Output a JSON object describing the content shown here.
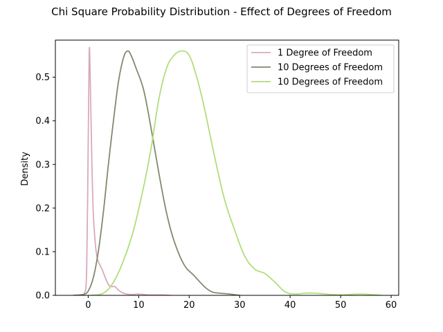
{
  "chart_data": {
    "type": "line",
    "title": "Chi Square Probability Distribution - Effect of Degrees of Freedom",
    "xlabel": "",
    "ylabel": "Density",
    "xlim": [
      -6.5,
      61.5
    ],
    "ylim": [
      0,
      0.585
    ],
    "xticks": [
      0,
      10,
      20,
      30,
      40,
      50,
      60
    ],
    "yticks": [
      0.0,
      0.1,
      0.2,
      0.3,
      0.4,
      0.5
    ],
    "xtick_labels": [
      "0",
      "10",
      "20",
      "30",
      "40",
      "50",
      "60"
    ],
    "ytick_labels": [
      "0.0",
      "0.1",
      "0.2",
      "0.3",
      "0.4",
      "0.5"
    ],
    "grid": false,
    "legend_position": "top-right",
    "series": [
      {
        "name": "1 Degree of Freedom",
        "color": "#d8a9bd",
        "x": [
          -1.5,
          -0.8,
          -0.3,
          0.0,
          0.2,
          0.4,
          0.7,
          1.0,
          1.4,
          1.8,
          2.3,
          2.8,
          3.4,
          4.0,
          4.6,
          5.3,
          6.0,
          7.0,
          8.5,
          10.0,
          12.0,
          14.0,
          16.5
        ],
        "y": [
          0.0,
          0.003,
          0.06,
          0.35,
          0.56,
          0.5,
          0.32,
          0.19,
          0.12,
          0.085,
          0.07,
          0.058,
          0.04,
          0.025,
          0.02,
          0.02,
          0.012,
          0.005,
          0.002,
          0.003,
          0.001,
          0.001,
          0.0
        ]
      },
      {
        "name": "10 Degrees of Freedom",
        "color": "#7e8a6c",
        "x": [
          -3.0,
          -1.0,
          0.0,
          1.0,
          2.0,
          3.0,
          4.0,
          5.0,
          6.0,
          7.0,
          7.8,
          8.5,
          9.5,
          11.0,
          12.5,
          14.0,
          15.5,
          17.0,
          19.0,
          21.0,
          23.0,
          24.5,
          26.0,
          28.0,
          30.0
        ],
        "y": [
          0.0,
          0.002,
          0.01,
          0.04,
          0.1,
          0.19,
          0.3,
          0.4,
          0.49,
          0.545,
          0.56,
          0.55,
          0.52,
          0.47,
          0.38,
          0.28,
          0.19,
          0.125,
          0.07,
          0.045,
          0.02,
          0.008,
          0.005,
          0.003,
          0.0
        ]
      },
      {
        "name": "10 Degrees of Freedom",
        "color": "#b1dd7a",
        "x": [
          0.5,
          3.0,
          5.0,
          7.0,
          9.0,
          11.0,
          12.5,
          14.0,
          15.5,
          17.0,
          18.5,
          20.0,
          21.5,
          23.0,
          25.0,
          27.0,
          29.0,
          31.0,
          33.0,
          35.0,
          37.0,
          39.0,
          41.0,
          43.0,
          45.0,
          47.0,
          50.0,
          54.0,
          58.0
        ],
        "y": [
          0.0,
          0.005,
          0.03,
          0.08,
          0.15,
          0.25,
          0.34,
          0.45,
          0.52,
          0.55,
          0.56,
          0.55,
          0.5,
          0.43,
          0.32,
          0.22,
          0.15,
          0.09,
          0.06,
          0.05,
          0.03,
          0.008,
          0.003,
          0.005,
          0.005,
          0.003,
          0.001,
          0.003,
          0.0
        ]
      }
    ]
  }
}
